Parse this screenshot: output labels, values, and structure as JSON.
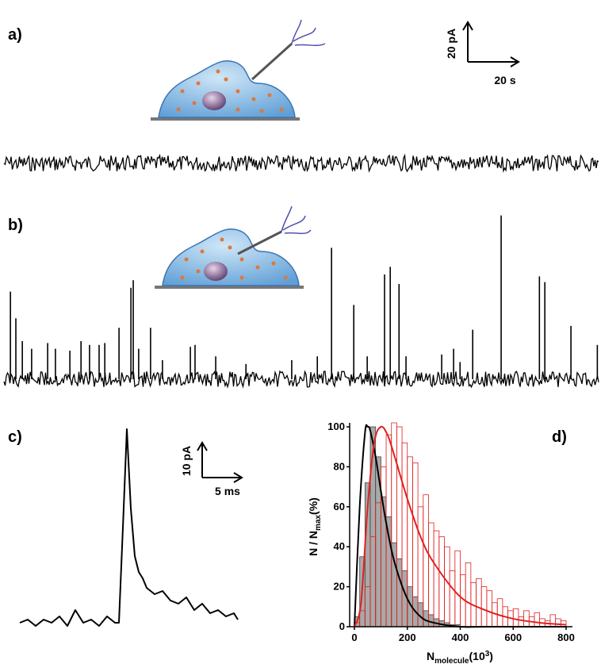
{
  "chart_data": [
    {
      "type": "trace",
      "label": "a)",
      "scalebar_y": "20 pA",
      "scalebar_x": "20 s"
    },
    {
      "type": "events",
      "label": "b)",
      "xlim": [
        0,
        230
      ],
      "ylim": [
        0,
        90
      ],
      "color": "#000000",
      "x": [
        2.5,
        4.6,
        7.1,
        10.7,
        16.9,
        19.9,
        25.5,
        29.8,
        33.1,
        36.8,
        39.0,
        44.5,
        49.1,
        50.0,
        52.1,
        56.7,
        61.3,
        72.1,
        73.9,
        81.9,
        93.6,
        111.3,
        121.2,
        126.7,
        135.3,
        140.5,
        147.2,
        149.4,
        152.8,
        155.5,
        169.3,
        173.9,
        176.4,
        181.3,
        192.3,
        207.1,
        209.2,
        219.3,
        229.5
      ],
      "values": [
        46,
        32,
        20,
        16,
        19,
        16,
        15,
        20,
        18,
        18,
        19,
        27,
        48,
        52,
        16,
        27,
        10,
        17,
        18,
        12,
        8,
        10,
        12,
        69,
        39,
        12,
        55,
        59,
        50,
        12,
        13,
        16,
        9,
        26,
        86,
        54,
        51,
        28,
        18
      ]
    },
    {
      "type": "line",
      "label": "c)",
      "scalebar_y": "10 pA",
      "scalebar_x": "5 ms",
      "xlim": [
        0,
        27.5
      ],
      "ylim": [
        -2,
        62
      ],
      "color": "#000000",
      "x": [
        0,
        1,
        2,
        3,
        4,
        5,
        6,
        7,
        8,
        9,
        10,
        11,
        12,
        12.5,
        13,
        13.5,
        14,
        14.5,
        15,
        15.5,
        16,
        17,
        18,
        19,
        20,
        21,
        22,
        23,
        24,
        25,
        26,
        27,
        27.5
      ],
      "values": [
        0,
        1,
        -1,
        1,
        0,
        2,
        -1,
        4,
        0,
        1,
        -1,
        2,
        0,
        0,
        30,
        61,
        36,
        21,
        16,
        14,
        11,
        9,
        10,
        7,
        6,
        8,
        4,
        6,
        3,
        4,
        2,
        3,
        1
      ]
    },
    {
      "type": "histogram",
      "label": "d)",
      "bins": [
        0,
        20,
        40,
        60,
        80,
        100,
        120,
        140,
        160,
        180,
        200,
        220,
        240,
        260,
        280,
        300,
        320,
        340,
        360,
        380,
        400,
        420,
        440,
        460,
        480,
        500,
        520,
        540,
        560,
        580,
        600,
        620,
        640,
        660,
        680,
        700,
        720,
        740,
        760,
        780,
        800
      ],
      "series": [
        {
          "color": "#444444",
          "fill": "#9a9a9a",
          "values": [
            5,
            35,
            72,
            100,
            85,
            65,
            55,
            42,
            34,
            28,
            20,
            15,
            12,
            8,
            6,
            4,
            3,
            2,
            1,
            1,
            0,
            0,
            0,
            0,
            0,
            0,
            0,
            0,
            0,
            0,
            0,
            0,
            0,
            0,
            0,
            0,
            0,
            0,
            0,
            0
          ]
        },
        {
          "color": "#e02020",
          "values": [
            2,
            8,
            20,
            45,
            62,
            80,
            96,
            102,
            100,
            92,
            85,
            82,
            60,
            66,
            52,
            48,
            45,
            40,
            28,
            38,
            26,
            32,
            22,
            24,
            20,
            18,
            12,
            14,
            10,
            8,
            9,
            5,
            8,
            5,
            7,
            4,
            3,
            6,
            4,
            3
          ]
        }
      ],
      "fits": [
        {
          "color": "#000000",
          "x": [
            0,
            20,
            40,
            50,
            60,
            80,
            100,
            120,
            150,
            200,
            250,
            300,
            400,
            500,
            800
          ],
          "values": [
            0,
            60,
            97,
            100,
            98,
            85,
            68,
            52,
            33,
            14,
            5,
            2,
            0,
            0,
            0
          ]
        },
        {
          "color": "#e02020",
          "x": [
            0,
            25,
            50,
            75,
            100,
            125,
            150,
            200,
            250,
            300,
            400,
            500,
            600,
            700,
            800
          ],
          "values": [
            0,
            12,
            60,
            92,
            100,
            96,
            86,
            64,
            45,
            32,
            15,
            8,
            4,
            2,
            1
          ]
        }
      ],
      "xlim": [
        0,
        800
      ],
      "ylim": [
        0,
        102
      ],
      "xticks": [
        0,
        200,
        400,
        600,
        800
      ],
      "yticks": [
        0,
        20,
        40,
        60,
        80,
        100
      ],
      "ylabel_parts": [
        "N / N",
        "max",
        "(%)"
      ],
      "xlabel_parts": [
        "N",
        "molecule",
        "(10",
        "3",
        ")"
      ]
    }
  ]
}
